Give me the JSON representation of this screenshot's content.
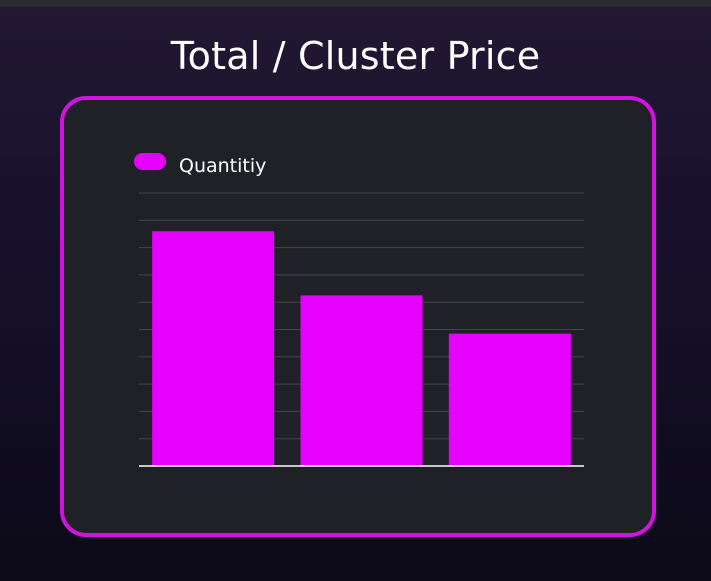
{
  "page": {
    "title": "Total / Cluster Price"
  },
  "colors": {
    "accent": "#e600ff",
    "border": "#d113e0",
    "grid": "#44454d",
    "axis": "#ffffff",
    "card": "#202127"
  },
  "chart_data": {
    "type": "bar",
    "categories": [
      "",
      "",
      ""
    ],
    "series": [
      {
        "name": "Quantitiy",
        "values": [
          8.6,
          6.25,
          4.85
        ]
      }
    ],
    "ylim": [
      0,
      10
    ],
    "grid": true,
    "legend": "top-left",
    "title": "",
    "xlabel": "",
    "ylabel": ""
  }
}
